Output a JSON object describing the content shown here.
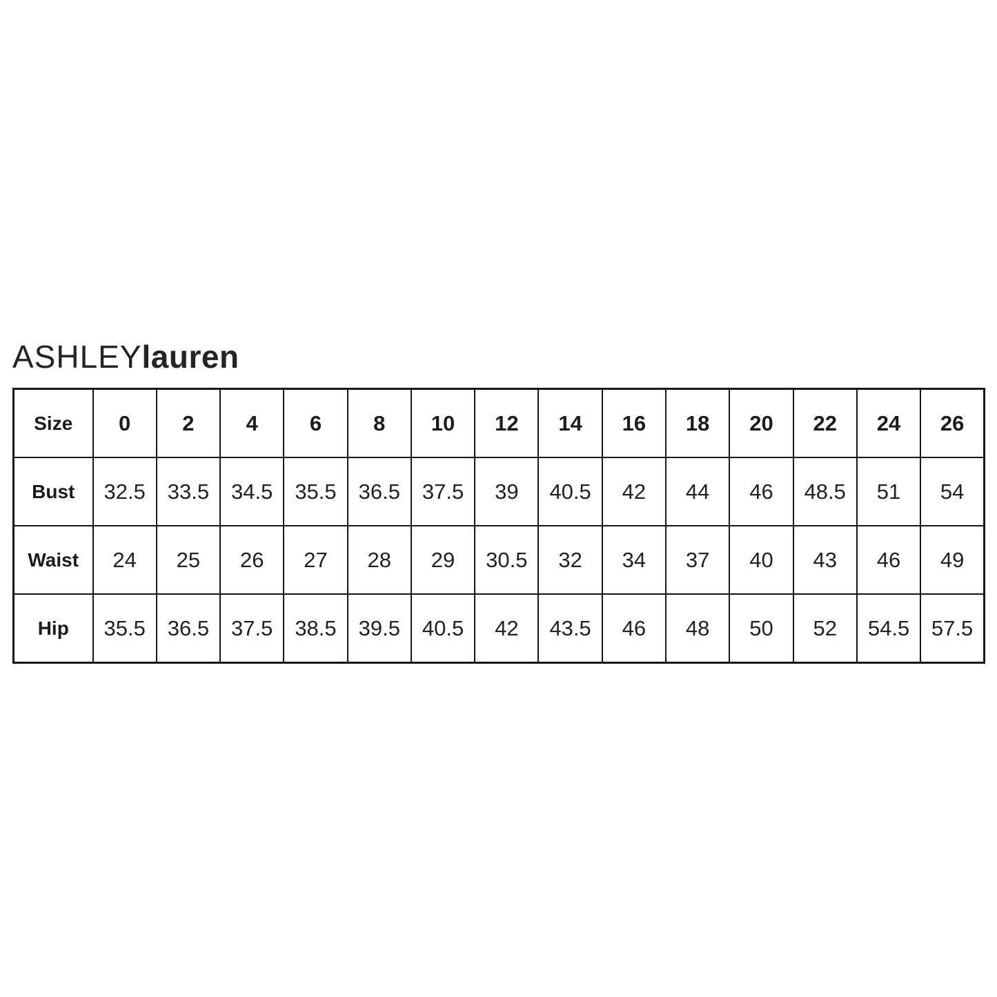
{
  "logo": {
    "part1": "ASHLEY",
    "part2": "lauren"
  },
  "colors": {
    "background": "#ffffff",
    "border": "#161616",
    "text": "#1c1c1c"
  },
  "chart_data": {
    "type": "table",
    "title": "ASHLEYlauren size chart",
    "columns": [
      "Size",
      "0",
      "2",
      "4",
      "6",
      "8",
      "10",
      "12",
      "14",
      "16",
      "18",
      "20",
      "22",
      "24",
      "26"
    ],
    "rows": [
      {
        "label": "Bust",
        "values": [
          "32.5",
          "33.5",
          "34.5",
          "35.5",
          "36.5",
          "37.5",
          "39",
          "40.5",
          "42",
          "44",
          "46",
          "48.5",
          "51",
          "54"
        ]
      },
      {
        "label": "Waist",
        "values": [
          "24",
          "25",
          "26",
          "27",
          "28",
          "29",
          "30.5",
          "32",
          "34",
          "37",
          "40",
          "43",
          "46",
          "49"
        ]
      },
      {
        "label": "Hip",
        "values": [
          "35.5",
          "36.5",
          "37.5",
          "38.5",
          "39.5",
          "40.5",
          "42",
          "43.5",
          "46",
          "48",
          "50",
          "52",
          "54.5",
          "57.5"
        ]
      }
    ]
  }
}
